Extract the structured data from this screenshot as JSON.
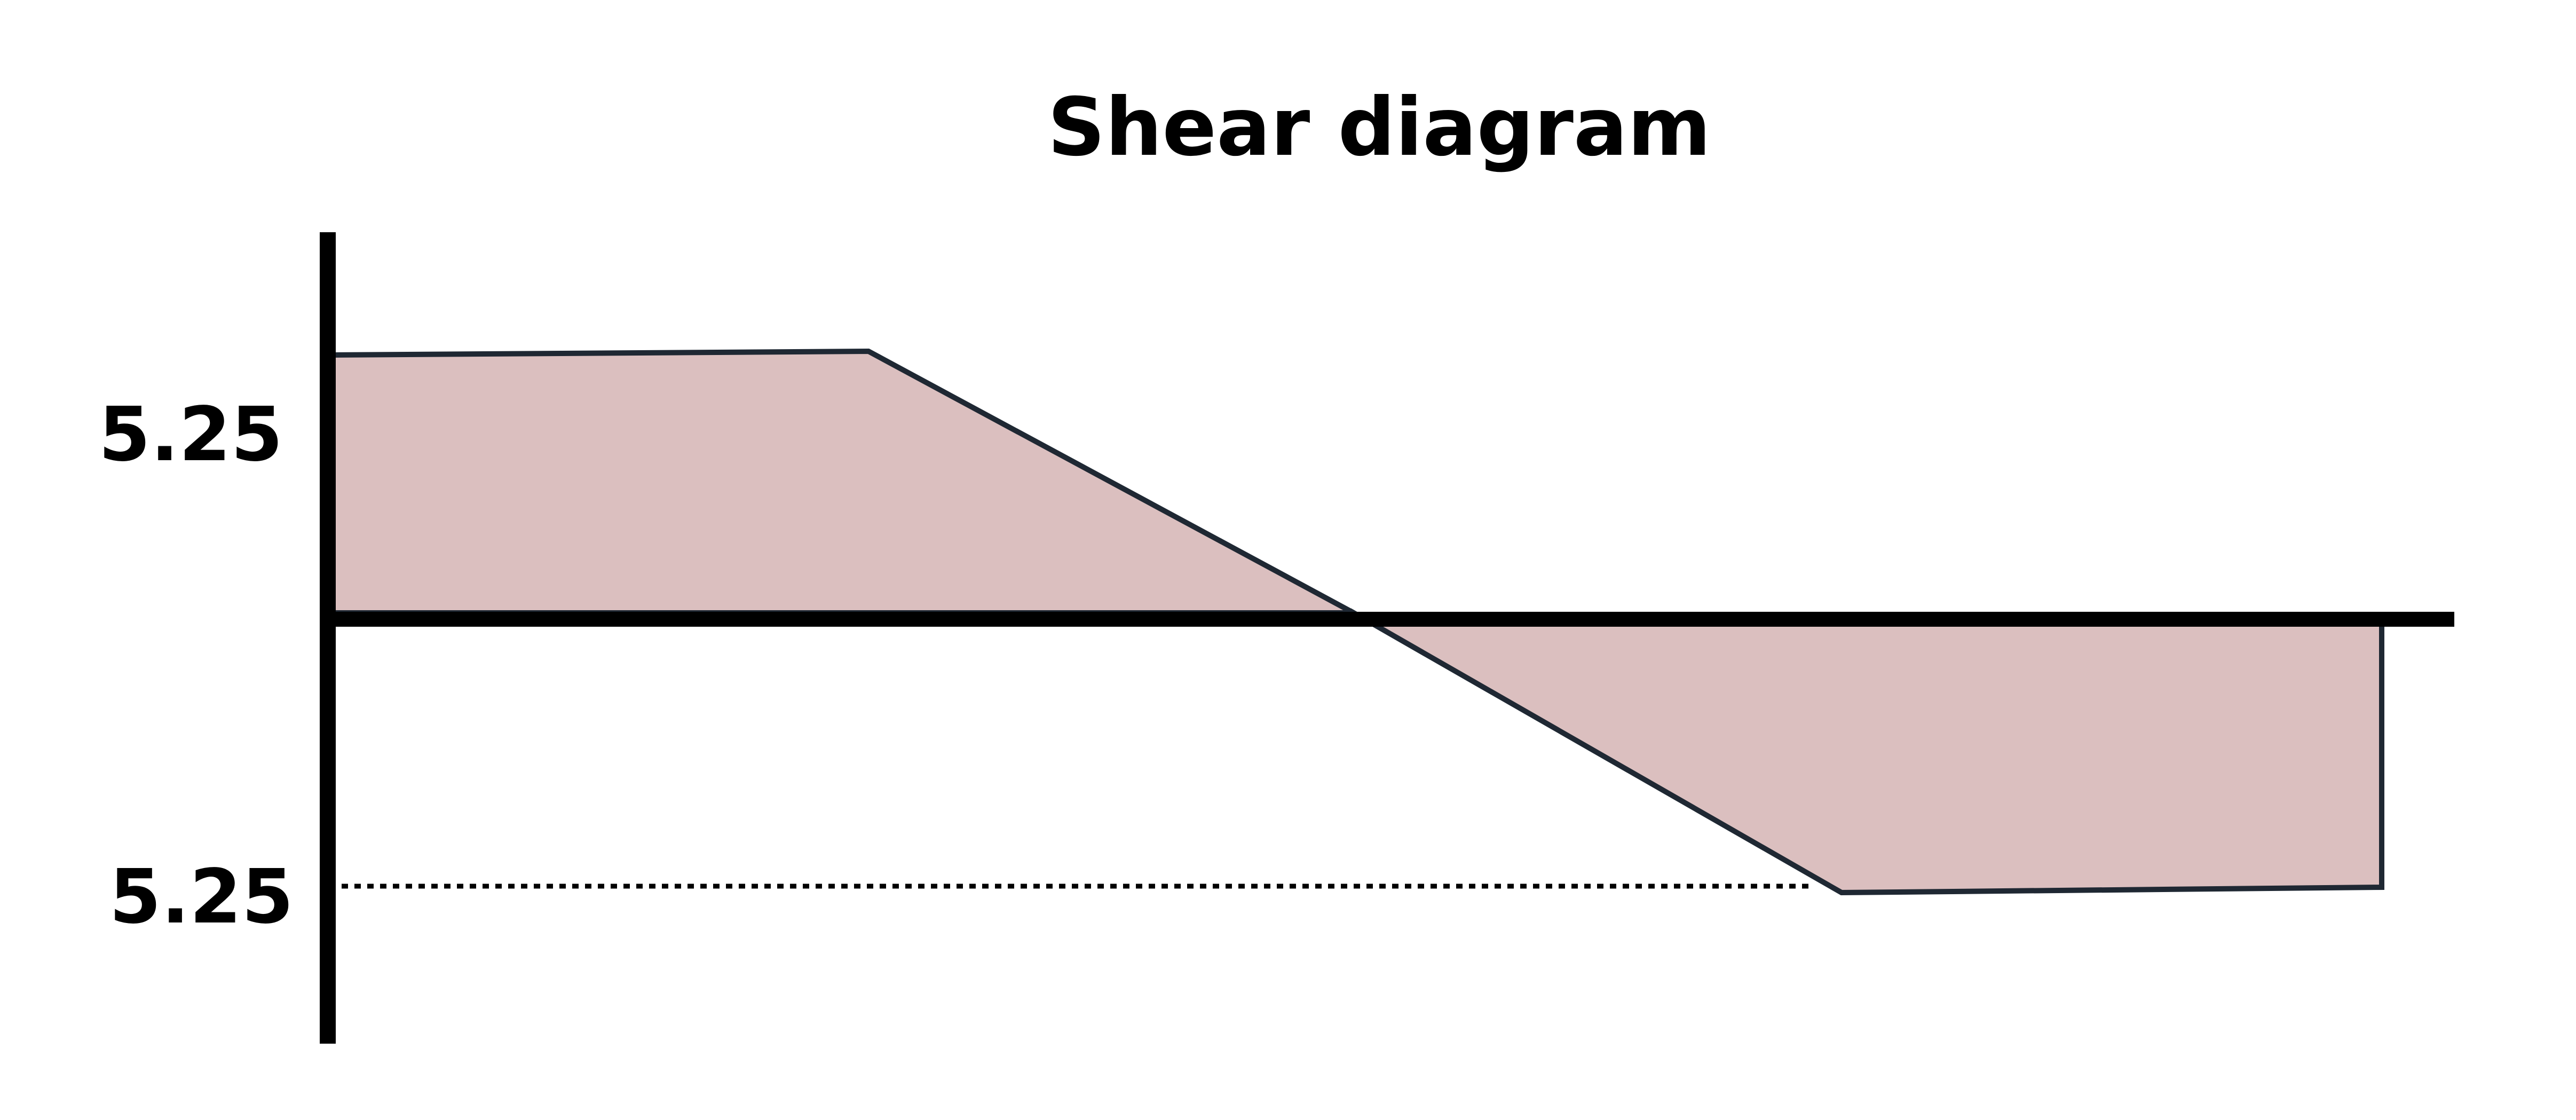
{
  "title": "Shear diagram",
  "labels": {
    "positive_value": "5.25",
    "negative_value": "5.25"
  },
  "colors": {
    "fill": "#dbbfbf",
    "outline": "#1f2833",
    "axis": "#000000",
    "zero_line_accent": "#c0392b"
  }
}
